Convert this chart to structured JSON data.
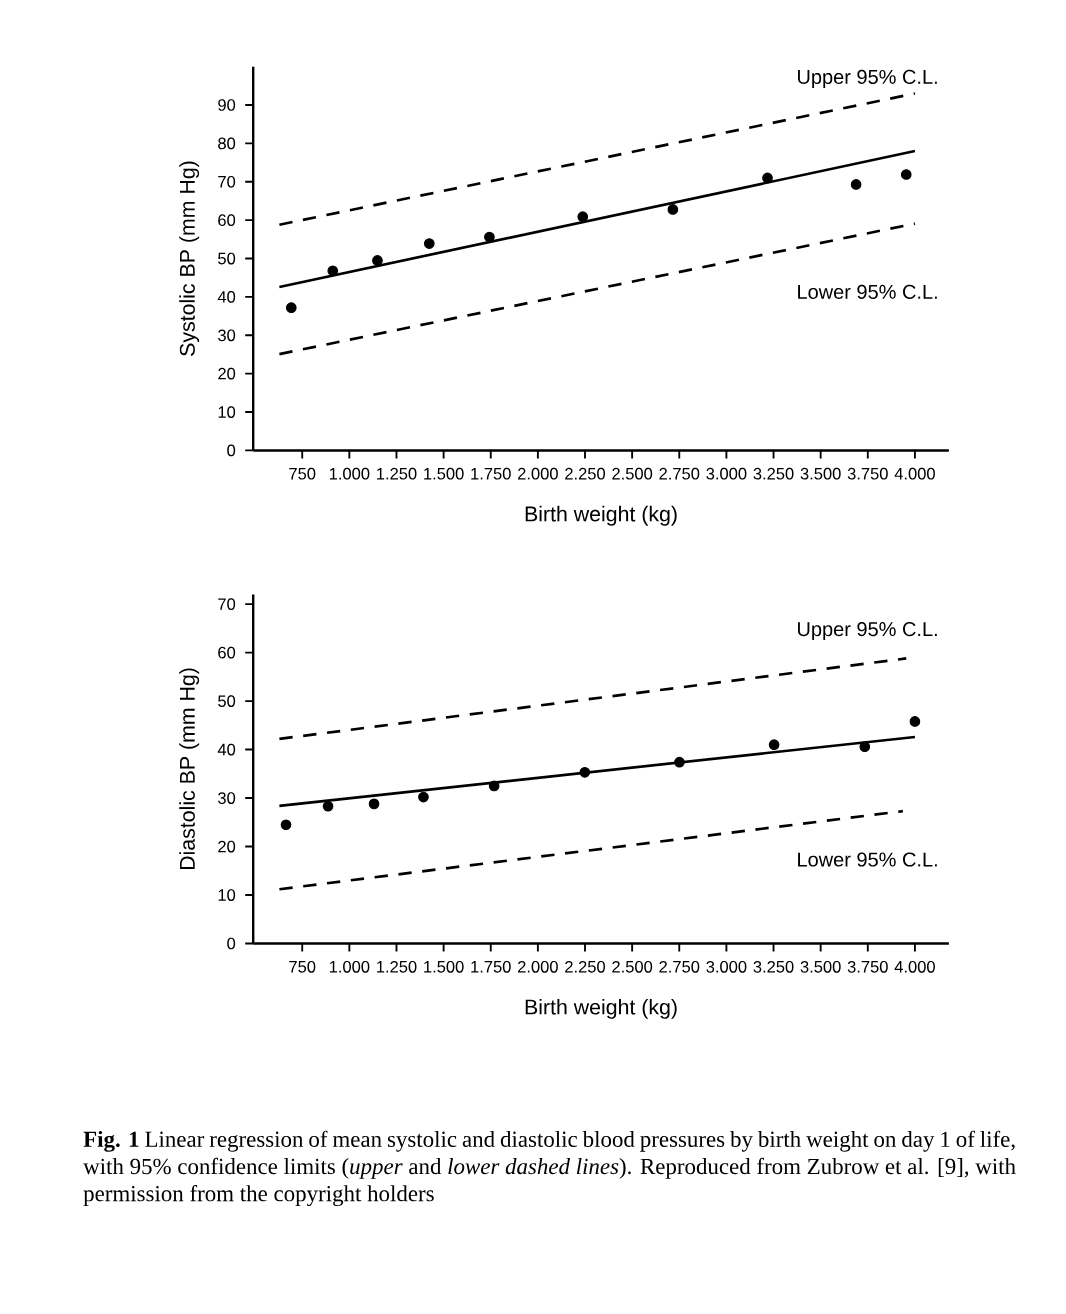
{
  "chart_data": [
    {
      "type": "scatter",
      "ylabel": "Systolic BP (mm Hg)",
      "xlabel": "Birth weight (kg)",
      "xlim": [
        490,
        4180
      ],
      "ylim": [
        0,
        100
      ],
      "xticks": [
        {
          "value": 750,
          "label": "750"
        },
        {
          "value": 1000,
          "label": "1.000"
        },
        {
          "value": 1250,
          "label": "1.250"
        },
        {
          "value": 1500,
          "label": "1.500"
        },
        {
          "value": 1750,
          "label": "1.750"
        },
        {
          "value": 2000,
          "label": "2.000"
        },
        {
          "value": 2250,
          "label": "2.250"
        },
        {
          "value": 2500,
          "label": "2.500"
        },
        {
          "value": 2750,
          "label": "2.750"
        },
        {
          "value": 3000,
          "label": "3.000"
        },
        {
          "value": 3250,
          "label": "3.250"
        },
        {
          "value": 3500,
          "label": "3.500"
        },
        {
          "value": 3750,
          "label": "3.750"
        },
        {
          "value": 4000,
          "label": "4.000"
        }
      ],
      "yticks": [
        0,
        10,
        20,
        30,
        40,
        50,
        60,
        70,
        80,
        90
      ],
      "annotations": [
        "Upper 95% C.L.",
        "Lower 95% C.L."
      ],
      "series": [
        {
          "marker": "circle",
          "color": "#000000",
          "x": [
            692,
            912,
            1149,
            1424,
            1743,
            2238,
            2716,
            3218,
            3688,
            3954
          ],
          "values": [
            37.2,
            46.8,
            49.5,
            53.9,
            55.6,
            60.9,
            62.8,
            71,
            69.3,
            71.9
          ]
        },
        {
          "type": "line",
          "line_style": "solid",
          "color": "#000000",
          "x": [
            629,
            4000
          ],
          "values": [
            42.6,
            78
          ]
        },
        {
          "type": "line",
          "line_style": "dashed",
          "color": "#000000",
          "x": [
            629,
            4000
          ],
          "values": [
            58.8,
            93
          ]
        },
        {
          "type": "line",
          "line_style": "dashed",
          "color": "#000000",
          "x": [
            629,
            4000
          ],
          "values": [
            25.1,
            59.1
          ]
        }
      ]
    },
    {
      "type": "scatter",
      "ylabel": "Diastolic BP (mm Hg)",
      "xlabel": "Birth weight (kg)",
      "xlim": [
        490,
        4180
      ],
      "ylim": [
        0,
        72
      ],
      "xticks": [
        {
          "value": 750,
          "label": "750"
        },
        {
          "value": 1000,
          "label": "1.000"
        },
        {
          "value": 1250,
          "label": "1.250"
        },
        {
          "value": 1500,
          "label": "1.500"
        },
        {
          "value": 1750,
          "label": "1.750"
        },
        {
          "value": 2000,
          "label": "2.000"
        },
        {
          "value": 2250,
          "label": "2.250"
        },
        {
          "value": 2500,
          "label": "2.500"
        },
        {
          "value": 2750,
          "label": "2.750"
        },
        {
          "value": 3000,
          "label": "3.000"
        },
        {
          "value": 3250,
          "label": "3.250"
        },
        {
          "value": 3500,
          "label": "3.500"
        },
        {
          "value": 3750,
          "label": "3.750"
        },
        {
          "value": 4000,
          "label": "4.000"
        }
      ],
      "yticks": [
        0,
        10,
        20,
        30,
        40,
        50,
        60,
        70
      ],
      "annotations": [
        "Upper 95% C.L.",
        "Lower 95% C.L.",
        "**Fig. 1** Linear regression of mean systolic and diastolic blood pressures by birth weight on day 1 of life, with 95% confidence limits (*upper* and *lower dashed lines*). Reproduced from Zubrow et al. [9], with permission from the copyright holders"
      ],
      "series": [
        {
          "marker": "circle",
          "color": "#000000",
          "x": [
            664,
            887,
            1131,
            1393,
            1768,
            2249,
            2751,
            3253,
            3734,
            4000
          ],
          "values": [
            24.5,
            28.3,
            28.8,
            30.2,
            32.5,
            35.3,
            37.4,
            41,
            40.6,
            45.8
          ]
        },
        {
          "type": "line",
          "line_style": "solid",
          "color": "#000000",
          "x": [
            629,
            4000
          ],
          "values": [
            28.4,
            42.6
          ]
        },
        {
          "type": "line",
          "line_style": "dashed",
          "color": "#000000",
          "x": [
            629,
            3954
          ],
          "values": [
            42.2,
            58.8
          ]
        },
        {
          "type": "line",
          "line_style": "dashed",
          "color": "#000000",
          "x": [
            629,
            3936
          ],
          "values": [
            11.2,
            27.3
          ]
        }
      ]
    }
  ]
}
